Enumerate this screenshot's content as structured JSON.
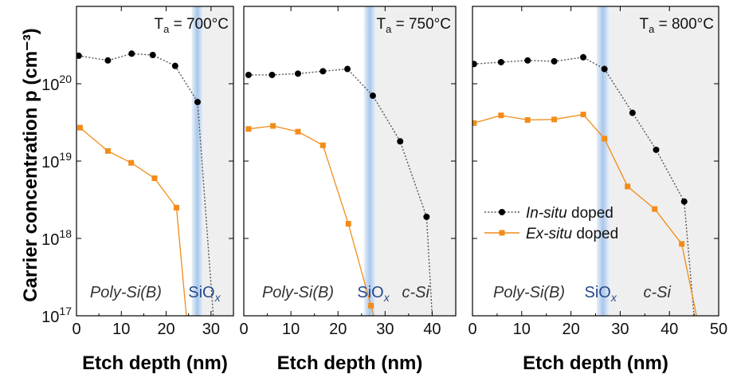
{
  "chart_data": {
    "type": "line",
    "ylabel": "Carrier concentration p (cm⁻³)",
    "yscale": "log",
    "ylim": [
      1e+17,
      1e+21
    ],
    "y_ticks": [
      {
        "value": 1e+17,
        "base": "10",
        "exp": "17"
      },
      {
        "value": 1e+18,
        "base": "10",
        "exp": "18"
      },
      {
        "value": 1e+19,
        "base": "10",
        "exp": "19"
      },
      {
        "value": 1e+20,
        "base": "10",
        "exp": "20"
      }
    ],
    "legend": {
      "placement": "lower-right of third panel",
      "entries": [
        {
          "series": "in_situ",
          "italic": "In-situ",
          "rest": " doped"
        },
        {
          "series": "ex_situ",
          "italic": "Ex-situ",
          "rest": " doped"
        }
      ]
    },
    "colors": {
      "in_situ": "#555555",
      "in_situ_marker": "#000000",
      "ex_situ": "#f28c18",
      "oxide_band": "#a9c6ea",
      "csi_region": "#efefef"
    },
    "panels": [
      {
        "temperature": {
          "prefix": "T",
          "sub": "a",
          "rest": " = 700°C"
        },
        "xlabel": "Etch depth (nm)",
        "xlim": [
          0,
          35
        ],
        "x_ticks": [
          "0",
          "10",
          "20",
          "30"
        ],
        "x_tick_values": [
          0,
          10,
          20,
          30
        ],
        "oxide_band": [
          25.7,
          28.2
        ],
        "csi_start": 28.2,
        "region_labels": [
          {
            "text": "Poly-Si(B)",
            "x": 11,
            "kind": "poly"
          },
          {
            "text": "SiO",
            "sub": "x",
            "x": 28.5,
            "kind": "oxide"
          }
        ],
        "series": [
          {
            "id": "in_situ",
            "x": [
              0.5,
              7,
              12.3,
              17,
              22,
              27,
              30.5
            ],
            "y": [
              2.3e+20,
              2e+20,
              2.45e+20,
              2.35e+20,
              1.7e+20,
              5.8e+19,
              1e+17
            ]
          },
          {
            "id": "ex_situ",
            "x": [
              0.8,
              7,
              12.2,
              17.4,
              22.3,
              24.5
            ],
            "y": [
              2.7e+19,
              1.35e+19,
              9.5e+18,
              6e+18,
              2.5e+18,
              1e+17
            ]
          }
        ]
      },
      {
        "temperature": {
          "prefix": "T",
          "sub": "a",
          "rest": " = 750°C"
        },
        "xlabel": "Etch depth (nm)",
        "xlim": [
          0,
          45
        ],
        "x_ticks": [
          "0",
          "10",
          "20",
          "30",
          "40"
        ],
        "x_tick_values": [
          0,
          10,
          20,
          30,
          40
        ],
        "oxide_band": [
          25.5,
          28.0
        ],
        "csi_start": 28.0,
        "region_labels": [
          {
            "text": "Poly-Si(B)",
            "x": 11.5,
            "kind": "poly"
          },
          {
            "text": "SiO",
            "sub": "x",
            "x": 27.5,
            "kind": "oxide"
          },
          {
            "text": "c-Si",
            "x": 36.5,
            "kind": "poly"
          }
        ],
        "series": [
          {
            "id": "in_situ",
            "x": [
              1,
              6,
              11.5,
              16.8,
              22,
              27.4,
              33.2,
              38.8,
              40
            ],
            "y": [
              1.3e+20,
              1.3e+20,
              1.35e+20,
              1.45e+20,
              1.55e+20,
              7e+19,
              1.8e+19,
              1.9e+18,
              1e+17
            ]
          },
          {
            "id": "ex_situ",
            "x": [
              1,
              6.2,
              11.5,
              16.8,
              22.2,
              27,
              27.6
            ],
            "y": [
              2.6e+19,
              2.85e+19,
              2.4e+19,
              1.6e+19,
              1.55e+18,
              1.35e+17,
              1e+17
            ]
          }
        ]
      },
      {
        "temperature": {
          "prefix": "T",
          "sub": "a",
          "rest": " = 800°C"
        },
        "xlabel": "Etch depth (nm)",
        "xlim": [
          0,
          50
        ],
        "x_ticks": [
          "0",
          "10",
          "20",
          "30",
          "40",
          "50"
        ],
        "x_tick_values": [
          0,
          10,
          20,
          30,
          40,
          50
        ],
        "oxide_band": [
          25.2,
          27.8
        ],
        "csi_start": 27.8,
        "region_labels": [
          {
            "text": "Poly-Si(B)",
            "x": 11.5,
            "kind": "poly"
          },
          {
            "text": "SiO",
            "sub": "x",
            "x": 26,
            "kind": "oxide"
          },
          {
            "text": "c-Si",
            "x": 37.5,
            "kind": "poly"
          }
        ],
        "series": [
          {
            "id": "in_situ",
            "x": [
              0.3,
              5.8,
              11.2,
              16.6,
              22.5,
              26.8,
              32.5,
              37.3,
              43,
              45
            ],
            "y": [
              1.8e+20,
              1.9e+20,
              2e+20,
              1.95e+20,
              2.2e+20,
              1.55e+20,
              4.2e+19,
              1.4e+19,
              3e+18,
              1e+17
            ]
          },
          {
            "id": "ex_situ",
            "x": [
              0.3,
              5.8,
              11.2,
              16.6,
              22.5,
              26.8,
              31.5,
              37,
              42.5,
              45.5
            ],
            "y": [
              3.1e+19,
              3.9e+19,
              3.4e+19,
              3.45e+19,
              4e+19,
              1.95e+19,
              4.7e+18,
              2.4e+18,
              8.5e+17,
              1e+17
            ]
          }
        ]
      }
    ]
  }
}
